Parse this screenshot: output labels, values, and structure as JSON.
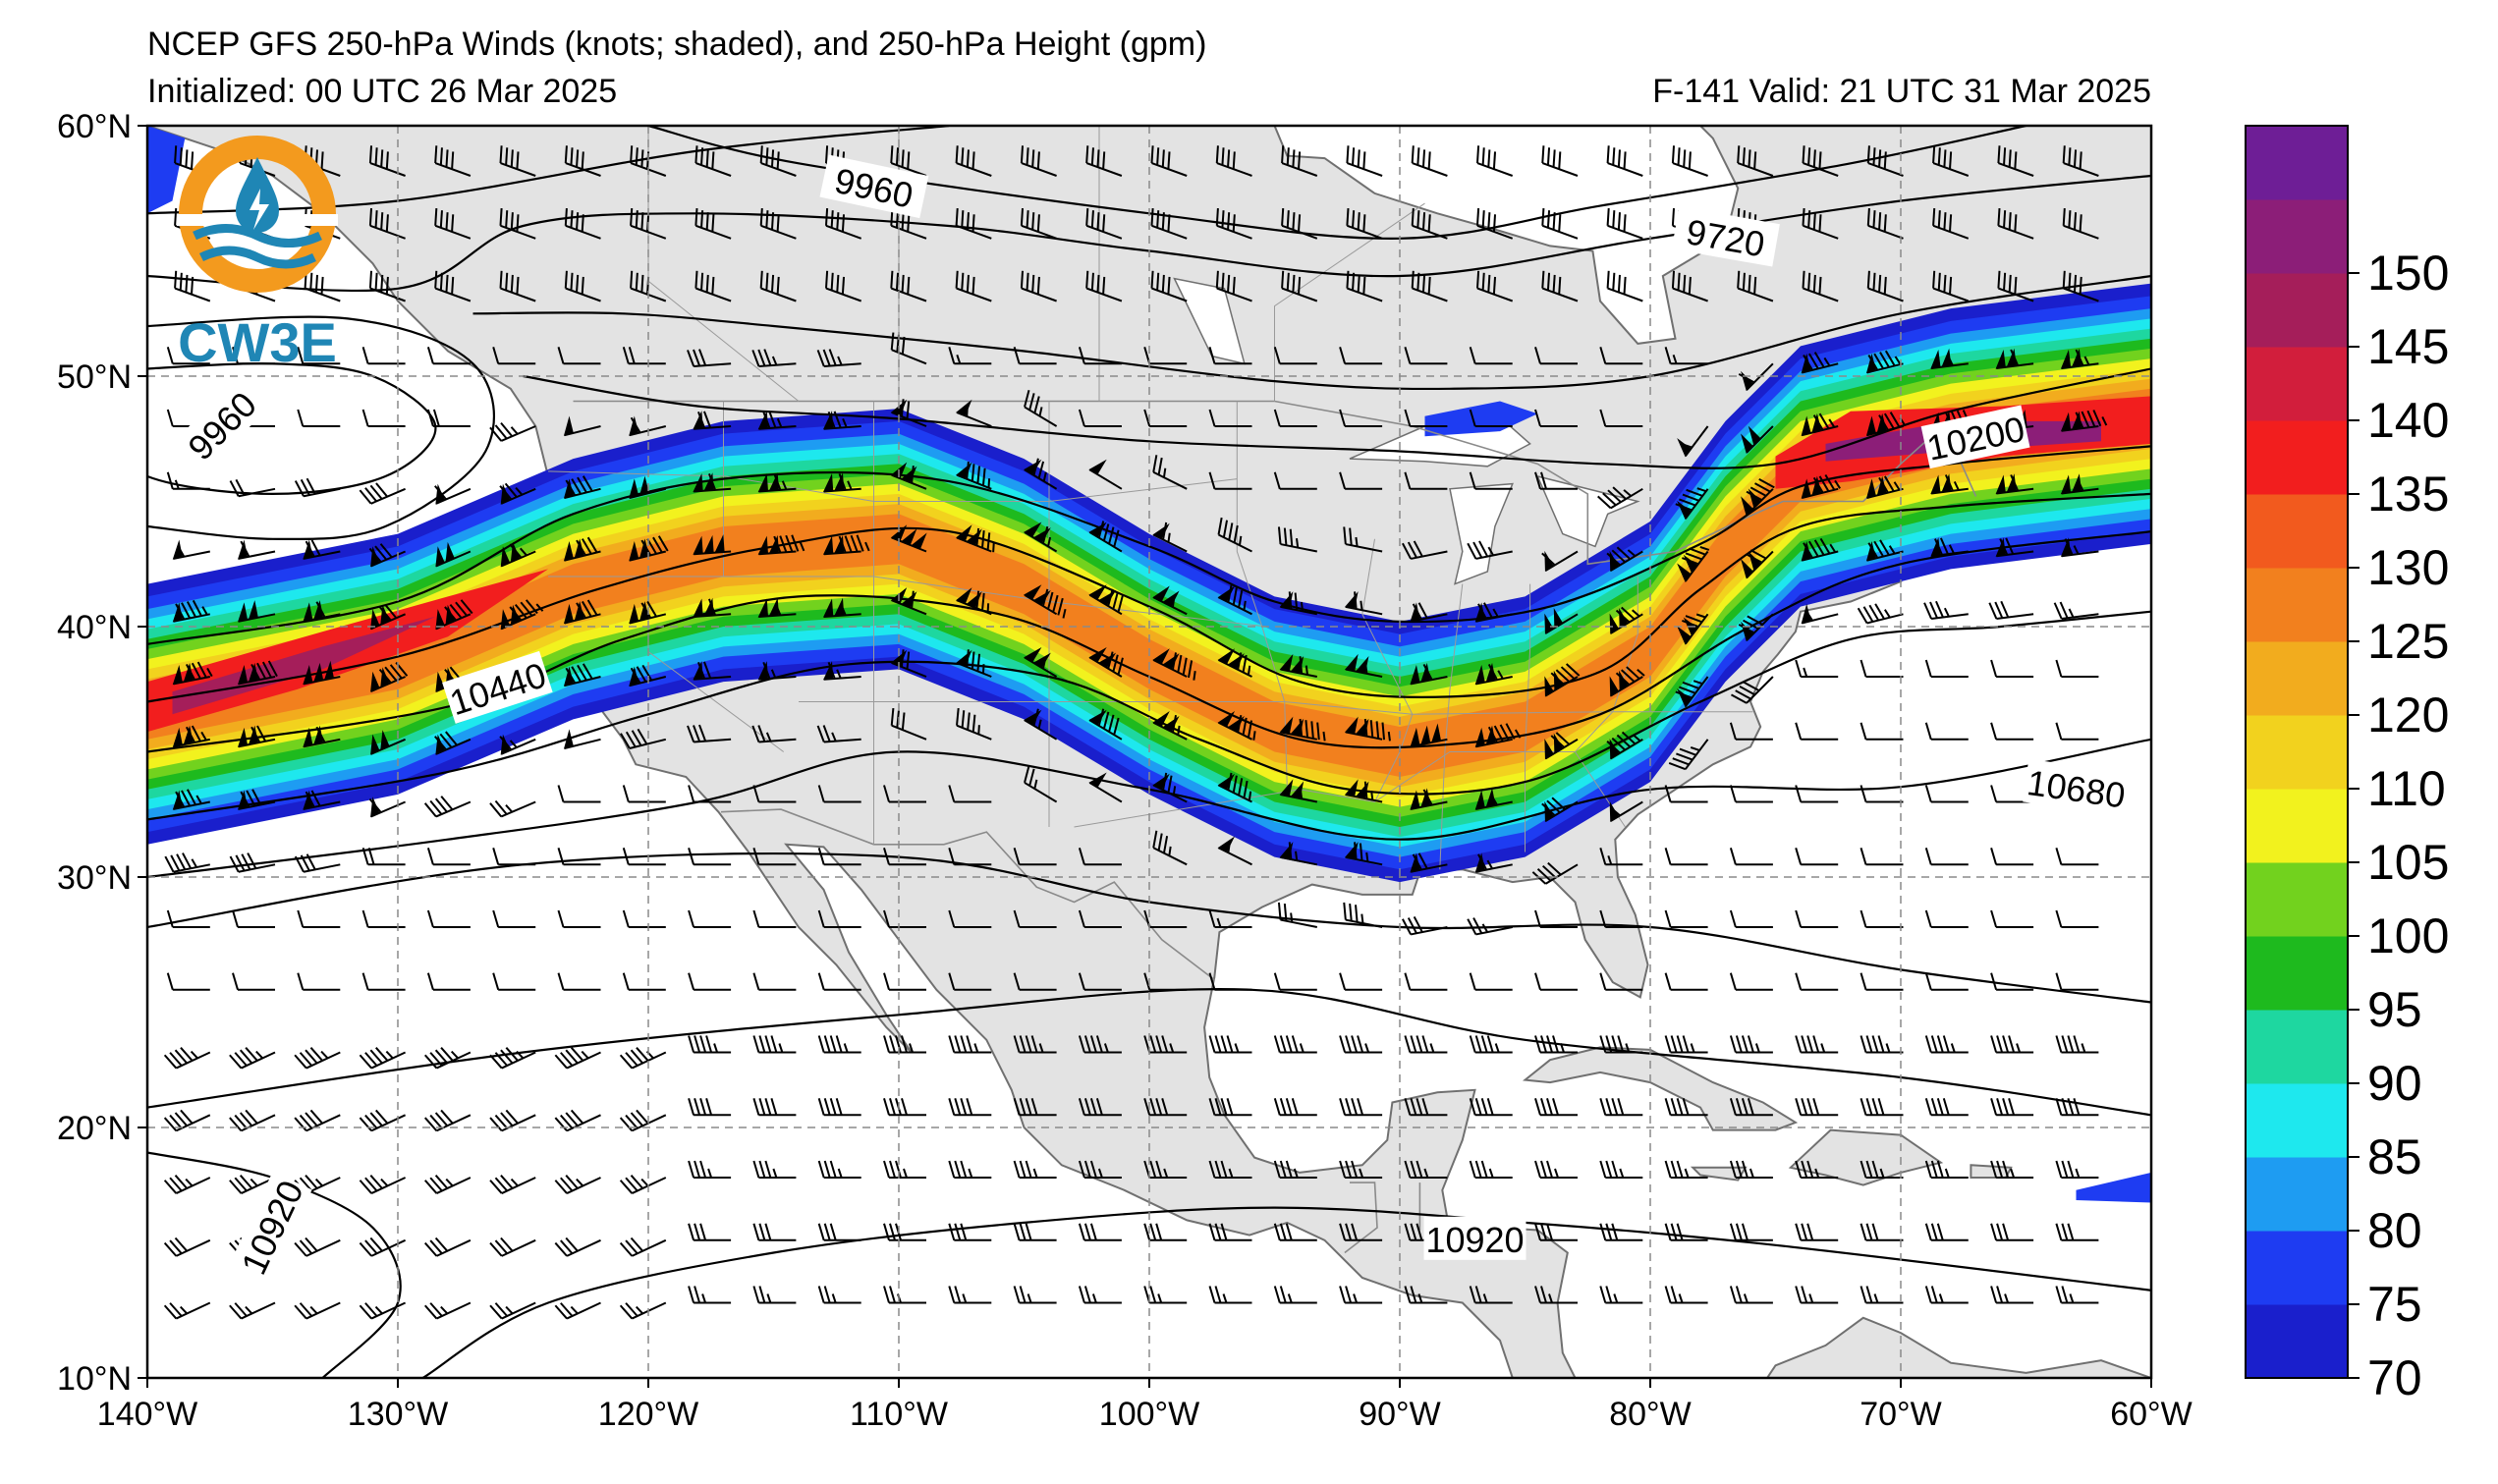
{
  "title_line1": "NCEP GFS 250-hPa Winds (knots; shaded), and 250-hPa Height (gpm)",
  "title_line2_left": "Initialized: 00 UTC 26 Mar 2025",
  "title_line2_right": "F-141  Valid: 21 UTC 31 Mar 2025",
  "logo_text": "CW3E",
  "chart_data": {
    "type": "map",
    "projection": "PlateCarree",
    "lon_range": [
      -140,
      -60
    ],
    "lat_range": [
      10,
      60
    ],
    "lon_ticks": [
      {
        "value": -140,
        "label": "140°W"
      },
      {
        "value": -130,
        "label": "130°W"
      },
      {
        "value": -120,
        "label": "120°W"
      },
      {
        "value": -110,
        "label": "110°W"
      },
      {
        "value": -100,
        "label": "100°W"
      },
      {
        "value": -90,
        "label": "90°W"
      },
      {
        "value": -80,
        "label": "80°W"
      },
      {
        "value": -70,
        "label": "70°W"
      },
      {
        "value": -60,
        "label": "60°W"
      }
    ],
    "lat_ticks": [
      {
        "value": 10,
        "label": "10°N"
      },
      {
        "value": 20,
        "label": "20°N"
      },
      {
        "value": 30,
        "label": "30°N"
      },
      {
        "value": 40,
        "label": "40°N"
      },
      {
        "value": 50,
        "label": "50°N"
      },
      {
        "value": 60,
        "label": "60°N"
      }
    ],
    "grid": true,
    "colorbar": {
      "placement": "right",
      "levels": [
        70,
        75,
        80,
        85,
        90,
        95,
        100,
        105,
        110,
        120,
        125,
        130,
        135,
        140,
        145,
        150,
        155
      ],
      "tick_labels": [
        "70",
        "75",
        "80",
        "85",
        "90",
        "95",
        "100",
        "105",
        "110",
        "120",
        "125",
        "130",
        "135",
        "140",
        "145",
        "150"
      ],
      "colors": [
        "#1a1fcc",
        "#1e3cf2",
        "#1e9cf2",
        "#1ee8ee",
        "#1ed7a0",
        "#1eba1e",
        "#72d21e",
        "#f2f21e",
        "#f2d21e",
        "#f2ac1e",
        "#f2801e",
        "#f25a1e",
        "#f21e1e",
        "#d21e3c",
        "#a51e5a",
        "#8c1e78",
        "#6e1e96"
      ]
    },
    "jet_axis": [
      [
        -140,
        36.5
      ],
      [
        -130,
        38.5
      ],
      [
        -123,
        41.5
      ],
      [
        -117,
        43
      ],
      [
        -110,
        43.5
      ],
      [
        -105,
        41.5
      ],
      [
        -100,
        38.5
      ],
      [
        -95,
        36
      ],
      [
        -90,
        35
      ],
      [
        -85,
        36
      ],
      [
        -80,
        39
      ],
      [
        -77,
        43
      ],
      [
        -74,
        46
      ],
      [
        -68,
        47.5
      ],
      [
        -60,
        48.5
      ]
    ],
    "jet_max_speed_knots": 150,
    "height_contours": [
      {
        "label": "9960",
        "label_pos": [
          -111,
          57.5
        ]
      },
      {
        "label": "9720",
        "label_pos": [
          -77,
          55.5
        ]
      },
      {
        "label": "9960",
        "label_pos": [
          -137,
          48
        ]
      },
      {
        "label": "10200",
        "label_pos": [
          -67,
          47.5
        ]
      },
      {
        "label": "10440",
        "label_pos": [
          -126,
          37.5
        ]
      },
      {
        "label": "10680",
        "label_pos": [
          -63,
          33.5
        ]
      },
      {
        "label": "10920",
        "label_pos": [
          -135,
          16
        ]
      },
      {
        "label": "10920",
        "label_pos": [
          -87,
          15.5
        ]
      }
    ]
  },
  "colors": {
    "land": "#e3e3e3",
    "ocean": "#ffffff",
    "coast": "#707070",
    "grid": "#8a8a8a",
    "logo_orange": "#f39a1e",
    "logo_blue": "#1f86b5"
  }
}
